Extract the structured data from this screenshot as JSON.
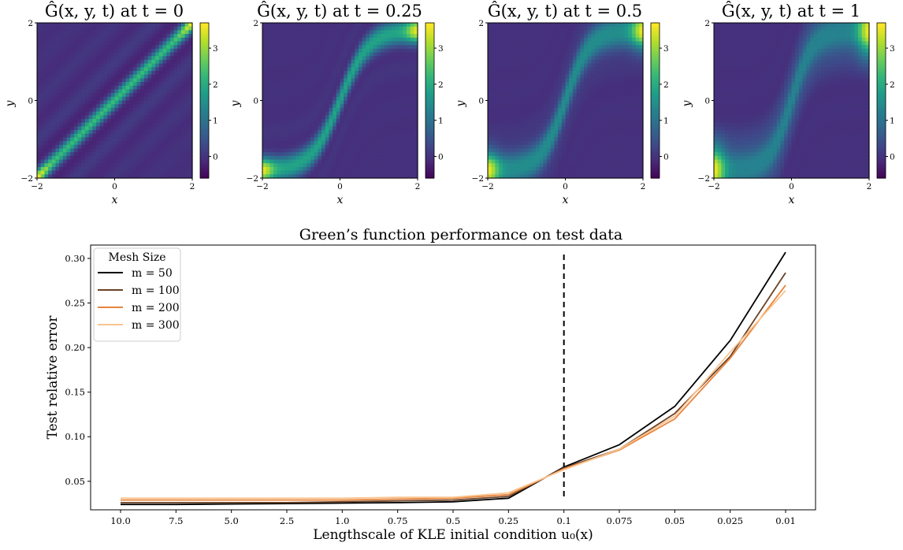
{
  "colors": {
    "viridis": [
      "#440154",
      "#482878",
      "#3e4a89",
      "#31688e",
      "#26828e",
      "#1f9e89",
      "#35b779",
      "#6ece58",
      "#b5de2b",
      "#fde725"
    ],
    "background_field": "#3b5a96"
  },
  "heatmaps": [
    {
      "title": "Ĝ(x, y, t) at t = 0",
      "t": 0,
      "band_width": 0.1,
      "band_peak": 2.3,
      "curve": 0.0,
      "xlabel": "x",
      "ylabel": "y",
      "x_ticks": [
        "−2",
        "0",
        "2"
      ],
      "y_ticks": [
        "−2",
        "0",
        "2"
      ],
      "colorbar_ticks": [
        "0",
        "1",
        "2",
        "3"
      ],
      "colorbar_range": [
        -0.6,
        3.7
      ]
    },
    {
      "title": "Ĝ(x, y, t) at t = 0.25",
      "t": 0.25,
      "band_width": 0.16,
      "band_peak": 1.9,
      "curve": 0.35,
      "xlabel": "x",
      "ylabel": "y",
      "x_ticks": [
        "−2",
        "0",
        "2"
      ],
      "y_ticks": [
        "−2",
        "0",
        "2"
      ],
      "colorbar_ticks": [
        "0",
        "1",
        "2",
        "3"
      ],
      "colorbar_range": [
        -0.6,
        3.7
      ]
    },
    {
      "title": "Ĝ(x, y, t) at t = 0.5",
      "t": 0.5,
      "band_width": 0.24,
      "band_peak": 1.5,
      "curve": 0.6,
      "xlabel": "x",
      "ylabel": "y",
      "x_ticks": [
        "−2",
        "0",
        "2"
      ],
      "y_ticks": [
        "−2",
        "0",
        "2"
      ],
      "colorbar_ticks": [
        "0",
        "1",
        "2",
        "3"
      ],
      "colorbar_range": [
        -0.6,
        3.7
      ]
    },
    {
      "title": "Ĝ(x, y, t) at t = 1",
      "t": 1,
      "band_width": 0.33,
      "band_peak": 1.3,
      "curve": 0.8,
      "xlabel": "x",
      "ylabel": "y",
      "x_ticks": [
        "−2",
        "0",
        "2"
      ],
      "y_ticks": [
        "−2",
        "0",
        "2"
      ],
      "colorbar_ticks": [
        "0",
        "1",
        "2",
        "3"
      ],
      "colorbar_range": [
        -0.6,
        3.7
      ]
    }
  ],
  "chart_data": {
    "type": "line",
    "title": "Green’s function performance on test data",
    "xlabel": "Lengthscale of KLE initial condition u₀(x)",
    "ylabel": "Test relative error",
    "categories": [
      "10.0",
      "7.5",
      "5.0",
      "2.5",
      "1.0",
      "0.75",
      "0.5",
      "0.25",
      "0.1",
      "0.075",
      "0.05",
      "0.025",
      "0.01"
    ],
    "ylim": [
      0.018,
      0.315
    ],
    "y_ticks": [
      "0.05",
      "0.10",
      "0.15",
      "0.20",
      "0.25",
      "0.30"
    ],
    "y_tick_values": [
      0.05,
      0.1,
      0.15,
      0.2,
      0.25,
      0.3
    ],
    "vline_at": "0.1",
    "legend_title": "Mesh Size",
    "legend_position": "top-left",
    "series": [
      {
        "name": "m = 50",
        "color": "#000000",
        "values": [
          0.024,
          0.024,
          0.0245,
          0.025,
          0.0255,
          0.026,
          0.027,
          0.031,
          0.066,
          0.091,
          0.134,
          0.208,
          0.307
        ]
      },
      {
        "name": "m = 100",
        "color": "#6b4226",
        "values": [
          0.026,
          0.026,
          0.026,
          0.026,
          0.027,
          0.028,
          0.029,
          0.033,
          0.065,
          0.086,
          0.126,
          0.19,
          0.284
        ]
      },
      {
        "name": "m = 200",
        "color": "#e8843c",
        "values": [
          0.029,
          0.029,
          0.029,
          0.029,
          0.029,
          0.03,
          0.031,
          0.035,
          0.064,
          0.085,
          0.12,
          0.188,
          0.27
        ]
      },
      {
        "name": "m = 300",
        "color": "#f9c48f",
        "values": [
          0.031,
          0.031,
          0.031,
          0.031,
          0.031,
          0.032,
          0.032,
          0.037,
          0.063,
          0.086,
          0.123,
          0.195,
          0.264
        ]
      }
    ]
  }
}
